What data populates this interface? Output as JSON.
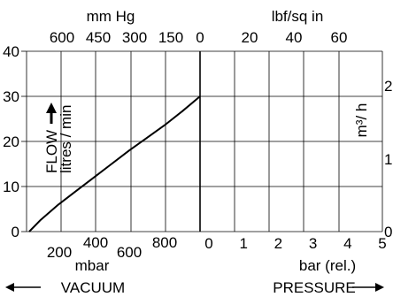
{
  "chart_data": {
    "type": "line",
    "series": [
      {
        "name": "",
        "x_mbar": [
          965,
          900,
          800,
          700,
          600,
          500,
          400,
          300,
          200,
          100,
          0
        ],
        "y": [
          0,
          2.6,
          6.0,
          9.0,
          12.0,
          15.0,
          18.0,
          20.8,
          23.6,
          26.7,
          30.0
        ]
      }
    ],
    "y_axis": {
      "ylabel": "FLOW",
      "ylabel_unit": "litres / min",
      "ylim": [
        0,
        40
      ],
      "ticks": [
        "0",
        "10",
        "20",
        "30",
        "40"
      ]
    },
    "y_axis_right": {
      "label": "m³/ h",
      "ticks": [
        "0",
        "1",
        "2"
      ]
    },
    "x_axis_bottom_left": {
      "title": "mbar",
      "ticks": [
        "200",
        "400",
        "600",
        "800"
      ]
    },
    "x_axis_bottom_right": {
      "title": "bar (rel.)",
      "ticks": [
        "0",
        "1",
        "2",
        "3",
        "4",
        "5"
      ]
    },
    "x_axis_top_left": {
      "title": "mm Hg",
      "ticks": [
        "600",
        "450",
        "300",
        "150",
        "0"
      ]
    },
    "x_axis_top_right": {
      "title": "lbf/sq in",
      "ticks": [
        "20",
        "40",
        "60"
      ]
    },
    "region_labels": {
      "left": "VACUUM",
      "right": "PRESSURE"
    },
    "grid": true
  }
}
